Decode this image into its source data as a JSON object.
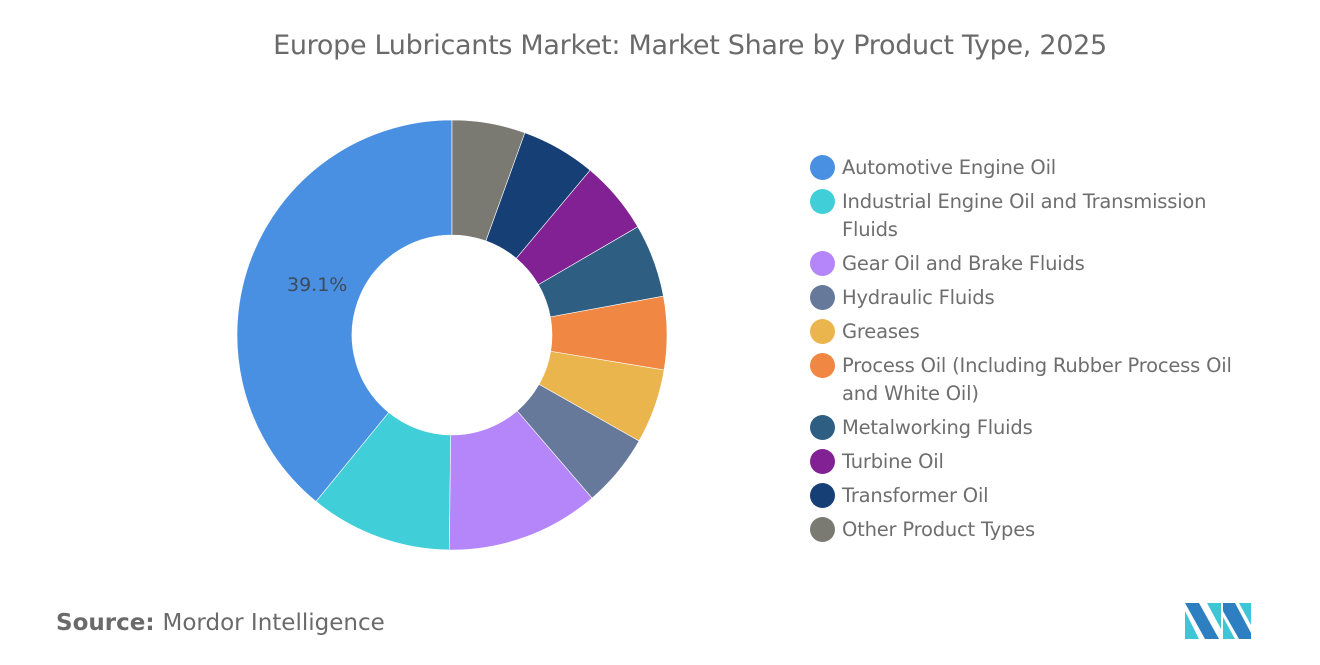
{
  "title": "Europe Lubricants Market: Market Share by Product Type, 2025",
  "source": {
    "key": "Source:",
    "value": "Mordor Intelligence"
  },
  "logo": {
    "icon": "mordor-intelligence-logo-icon",
    "colors": [
      "#2d7fc1",
      "#3fc6d6"
    ]
  },
  "chart_data": {
    "type": "pie",
    "subtype": "donut",
    "title": "Europe Lubricants Market: Market Share by Product Type, 2025",
    "categories": [
      "Automotive Engine Oil",
      "Industrial Engine Oil and Transmission Fluids",
      "Gear Oil and Brake Fluids",
      "Hydraulic Fluids",
      "Greases",
      "Process Oil (Including Rubber Process Oil and White Oil)",
      "Metalworking Fluids",
      "Turbine Oil",
      "Transformer Oil",
      "Other Product Types"
    ],
    "values": [
      39.1,
      10.7,
      11.5,
      5.5,
      5.6,
      5.5,
      5.5,
      5.5,
      5.6,
      5.5
    ],
    "unit": "%",
    "colors": [
      "#4a90e2",
      "#40cfd9",
      "#b486f9",
      "#66799b",
      "#ebb54d",
      "#f08742",
      "#2e5e82",
      "#822193",
      "#163f75",
      "#7a7a72"
    ],
    "data_labels": [
      {
        "category": "Automotive Engine Oil",
        "text": "39.1%"
      }
    ],
    "legend_position": "right",
    "start_angle": "12 o'clock",
    "direction": "slices drawn counter-clockwise from top in category order"
  },
  "legend": {
    "items": [
      {
        "label": "Automotive Engine Oil",
        "color": "#4a90e2"
      },
      {
        "label": "Industrial Engine Oil and Transmission Fluids",
        "color": "#40cfd9"
      },
      {
        "label": "Gear Oil and Brake Fluids",
        "color": "#b486f9"
      },
      {
        "label": "Hydraulic Fluids",
        "color": "#66799b"
      },
      {
        "label": "Greases",
        "color": "#ebb54d"
      },
      {
        "label": "Process Oil (Including Rubber Process Oil and White Oil)",
        "color": "#f08742"
      },
      {
        "label": "Metalworking Fluids",
        "color": "#2e5e82"
      },
      {
        "label": "Turbine Oil",
        "color": "#822193"
      },
      {
        "label": "Transformer Oil",
        "color": "#163f75"
      },
      {
        "label": "Other Product Types",
        "color": "#7a7a72"
      }
    ]
  },
  "slice_label": "39.1%"
}
